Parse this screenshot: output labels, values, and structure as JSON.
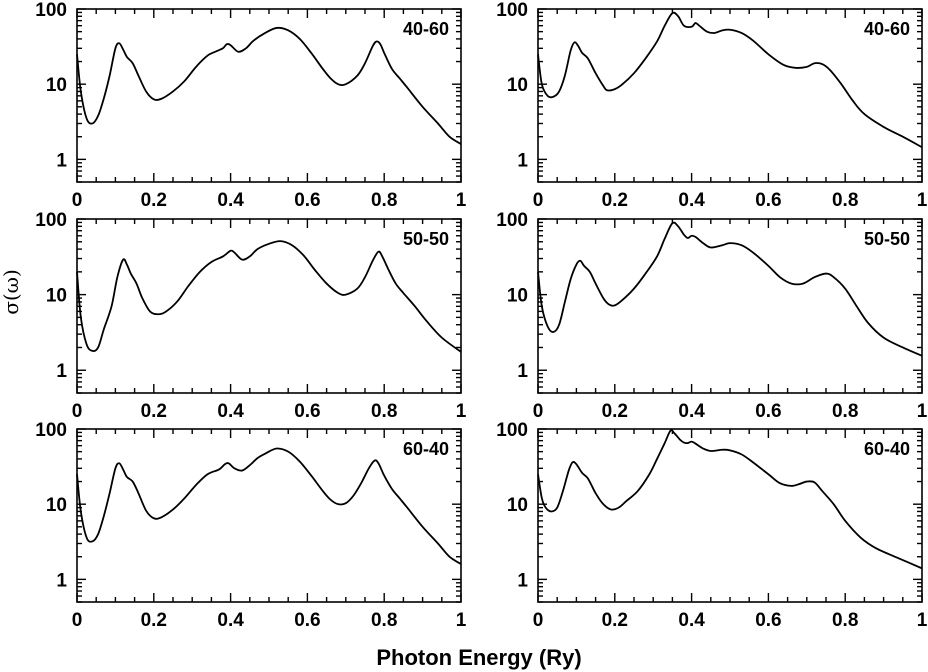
{
  "chart_data": {
    "type": "line",
    "xlabel": "Photon Energy (Ry)",
    "ylabel": "σ(ω)",
    "xlim": [
      0,
      1
    ],
    "ylim": [
      0.5,
      100
    ],
    "yscale": "log",
    "x_ticks": [
      "0",
      "0.2",
      "0.4",
      "0.6",
      "0.8",
      "1"
    ],
    "x_tick_values": [
      0,
      0.2,
      0.4,
      0.6,
      0.8,
      1
    ],
    "y_ticks": [
      "1",
      "10",
      "100"
    ],
    "y_tick_values": [
      1,
      10,
      100
    ],
    "panels": [
      {
        "name": "left-40-60",
        "label": "40-60",
        "points": [
          [
            0,
            25
          ],
          [
            0.01,
            8
          ],
          [
            0.025,
            3.5
          ],
          [
            0.04,
            3
          ],
          [
            0.055,
            3.8
          ],
          [
            0.07,
            6.5
          ],
          [
            0.085,
            13
          ],
          [
            0.1,
            30
          ],
          [
            0.11,
            35
          ],
          [
            0.12,
            29
          ],
          [
            0.13,
            23
          ],
          [
            0.145,
            19
          ],
          [
            0.16,
            13
          ],
          [
            0.18,
            8
          ],
          [
            0.2,
            6.3
          ],
          [
            0.22,
            6.4
          ],
          [
            0.25,
            8
          ],
          [
            0.28,
            11
          ],
          [
            0.31,
            17
          ],
          [
            0.34,
            24
          ],
          [
            0.36,
            27
          ],
          [
            0.38,
            30
          ],
          [
            0.39,
            34
          ],
          [
            0.4,
            33
          ],
          [
            0.42,
            27
          ],
          [
            0.44,
            30
          ],
          [
            0.46,
            38
          ],
          [
            0.49,
            48
          ],
          [
            0.52,
            56
          ],
          [
            0.55,
            52
          ],
          [
            0.58,
            40
          ],
          [
            0.61,
            26
          ],
          [
            0.64,
            16
          ],
          [
            0.66,
            12
          ],
          [
            0.68,
            10
          ],
          [
            0.7,
            10
          ],
          [
            0.73,
            13
          ],
          [
            0.75,
            19
          ],
          [
            0.77,
            32
          ],
          [
            0.78,
            37
          ],
          [
            0.79,
            34
          ],
          [
            0.8,
            26
          ],
          [
            0.82,
            16
          ],
          [
            0.84,
            12
          ],
          [
            0.86,
            9
          ],
          [
            0.9,
            5
          ],
          [
            0.94,
            3
          ],
          [
            0.97,
            2
          ],
          [
            1.0,
            1.6
          ]
        ]
      },
      {
        "name": "right-40-60",
        "label": "40-60",
        "points": [
          [
            0,
            25
          ],
          [
            0.01,
            10
          ],
          [
            0.025,
            7
          ],
          [
            0.04,
            6.8
          ],
          [
            0.055,
            8
          ],
          [
            0.07,
            13
          ],
          [
            0.085,
            28
          ],
          [
            0.095,
            36
          ],
          [
            0.105,
            32
          ],
          [
            0.115,
            26
          ],
          [
            0.13,
            22
          ],
          [
            0.15,
            14
          ],
          [
            0.17,
            9.5
          ],
          [
            0.18,
            8.3
          ],
          [
            0.2,
            8.6
          ],
          [
            0.22,
            10
          ],
          [
            0.25,
            14
          ],
          [
            0.28,
            22
          ],
          [
            0.31,
            37
          ],
          [
            0.33,
            60
          ],
          [
            0.35,
            88
          ],
          [
            0.365,
            80
          ],
          [
            0.38,
            60
          ],
          [
            0.4,
            58
          ],
          [
            0.41,
            65
          ],
          [
            0.42,
            60
          ],
          [
            0.44,
            50
          ],
          [
            0.46,
            48
          ],
          [
            0.48,
            52
          ],
          [
            0.5,
            53
          ],
          [
            0.53,
            48
          ],
          [
            0.56,
            38
          ],
          [
            0.6,
            25
          ],
          [
            0.64,
            18
          ],
          [
            0.67,
            16.5
          ],
          [
            0.7,
            17
          ],
          [
            0.72,
            19
          ],
          [
            0.74,
            18.5
          ],
          [
            0.76,
            15.5
          ],
          [
            0.79,
            10
          ],
          [
            0.82,
            6
          ],
          [
            0.85,
            4
          ],
          [
            0.9,
            2.7
          ],
          [
            0.95,
            2
          ],
          [
            1.0,
            1.45
          ]
        ]
      },
      {
        "name": "left-50-50",
        "label": "50-50",
        "points": [
          [
            0,
            20
          ],
          [
            0.01,
            5
          ],
          [
            0.025,
            2.2
          ],
          [
            0.04,
            1.8
          ],
          [
            0.055,
            2
          ],
          [
            0.07,
            3.5
          ],
          [
            0.09,
            7
          ],
          [
            0.105,
            17
          ],
          [
            0.12,
            29
          ],
          [
            0.13,
            25
          ],
          [
            0.14,
            19
          ],
          [
            0.155,
            14
          ],
          [
            0.17,
            9
          ],
          [
            0.19,
            6
          ],
          [
            0.21,
            5.5
          ],
          [
            0.23,
            5.9
          ],
          [
            0.26,
            8
          ],
          [
            0.29,
            13
          ],
          [
            0.32,
            20
          ],
          [
            0.35,
            27
          ],
          [
            0.38,
            32
          ],
          [
            0.4,
            38
          ],
          [
            0.41,
            36
          ],
          [
            0.43,
            29
          ],
          [
            0.45,
            32
          ],
          [
            0.47,
            40
          ],
          [
            0.5,
            47
          ],
          [
            0.53,
            51
          ],
          [
            0.56,
            45
          ],
          [
            0.59,
            33
          ],
          [
            0.62,
            21
          ],
          [
            0.65,
            14
          ],
          [
            0.68,
            10.5
          ],
          [
            0.7,
            10
          ],
          [
            0.73,
            12
          ],
          [
            0.75,
            17
          ],
          [
            0.77,
            28
          ],
          [
            0.785,
            37
          ],
          [
            0.795,
            32
          ],
          [
            0.81,
            22
          ],
          [
            0.83,
            14
          ],
          [
            0.85,
            10.5
          ],
          [
            0.88,
            7
          ],
          [
            0.91,
            4.5
          ],
          [
            0.95,
            2.7
          ],
          [
            1.0,
            1.75
          ]
        ]
      },
      {
        "name": "right-50-50",
        "label": "50-50",
        "points": [
          [
            0,
            20
          ],
          [
            0.01,
            7
          ],
          [
            0.025,
            3.8
          ],
          [
            0.04,
            3.2
          ],
          [
            0.055,
            4
          ],
          [
            0.07,
            8
          ],
          [
            0.085,
            16
          ],
          [
            0.1,
            25
          ],
          [
            0.11,
            28
          ],
          [
            0.12,
            24
          ],
          [
            0.135,
            20
          ],
          [
            0.15,
            14
          ],
          [
            0.17,
            9
          ],
          [
            0.185,
            7.4
          ],
          [
            0.2,
            7.2
          ],
          [
            0.22,
            8.5
          ],
          [
            0.25,
            12
          ],
          [
            0.28,
            19
          ],
          [
            0.31,
            32
          ],
          [
            0.33,
            55
          ],
          [
            0.35,
            88
          ],
          [
            0.365,
            80
          ],
          [
            0.38,
            62
          ],
          [
            0.39,
            56
          ],
          [
            0.4,
            60
          ],
          [
            0.41,
            58
          ],
          [
            0.43,
            48
          ],
          [
            0.45,
            42
          ],
          [
            0.48,
            45
          ],
          [
            0.5,
            48
          ],
          [
            0.53,
            45
          ],
          [
            0.56,
            36
          ],
          [
            0.6,
            24
          ],
          [
            0.63,
            17
          ],
          [
            0.66,
            14
          ],
          [
            0.69,
            14
          ],
          [
            0.72,
            17
          ],
          [
            0.75,
            19
          ],
          [
            0.77,
            17
          ],
          [
            0.8,
            12
          ],
          [
            0.83,
            7
          ],
          [
            0.86,
            4.2
          ],
          [
            0.9,
            2.7
          ],
          [
            0.95,
            2
          ],
          [
            1.0,
            1.55
          ]
        ]
      },
      {
        "name": "left-60-40",
        "label": "60-40",
        "points": [
          [
            0,
            25
          ],
          [
            0.01,
            8
          ],
          [
            0.025,
            3.6
          ],
          [
            0.04,
            3.2
          ],
          [
            0.055,
            4
          ],
          [
            0.07,
            7
          ],
          [
            0.085,
            14
          ],
          [
            0.1,
            30
          ],
          [
            0.11,
            35
          ],
          [
            0.12,
            29
          ],
          [
            0.13,
            23
          ],
          [
            0.145,
            20
          ],
          [
            0.16,
            14
          ],
          [
            0.18,
            8.2
          ],
          [
            0.2,
            6.5
          ],
          [
            0.22,
            6.7
          ],
          [
            0.25,
            8.5
          ],
          [
            0.28,
            12
          ],
          [
            0.31,
            18
          ],
          [
            0.34,
            25
          ],
          [
            0.37,
            29
          ],
          [
            0.385,
            34
          ],
          [
            0.395,
            35
          ],
          [
            0.41,
            30
          ],
          [
            0.43,
            28
          ],
          [
            0.45,
            33
          ],
          [
            0.47,
            41
          ],
          [
            0.49,
            47
          ],
          [
            0.52,
            55
          ],
          [
            0.55,
            50
          ],
          [
            0.58,
            37
          ],
          [
            0.61,
            24
          ],
          [
            0.64,
            15
          ],
          [
            0.66,
            11.5
          ],
          [
            0.68,
            10
          ],
          [
            0.7,
            10.3
          ],
          [
            0.72,
            13
          ],
          [
            0.74,
            19
          ],
          [
            0.76,
            30
          ],
          [
            0.775,
            38
          ],
          [
            0.785,
            35
          ],
          [
            0.8,
            24
          ],
          [
            0.82,
            16
          ],
          [
            0.84,
            12
          ],
          [
            0.86,
            9
          ],
          [
            0.9,
            5
          ],
          [
            0.94,
            3
          ],
          [
            0.97,
            2
          ],
          [
            1.0,
            1.6
          ]
        ]
      },
      {
        "name": "right-60-40",
        "label": "60-40",
        "points": [
          [
            0,
            25
          ],
          [
            0.01,
            12
          ],
          [
            0.02,
            9
          ],
          [
            0.035,
            8
          ],
          [
            0.05,
            9
          ],
          [
            0.065,
            15
          ],
          [
            0.08,
            28
          ],
          [
            0.09,
            36
          ],
          [
            0.1,
            34
          ],
          [
            0.115,
            26
          ],
          [
            0.13,
            22
          ],
          [
            0.15,
            14
          ],
          [
            0.17,
            10
          ],
          [
            0.19,
            8.5
          ],
          [
            0.21,
            9
          ],
          [
            0.23,
            11
          ],
          [
            0.26,
            15
          ],
          [
            0.29,
            25
          ],
          [
            0.31,
            40
          ],
          [
            0.33,
            65
          ],
          [
            0.345,
            95
          ],
          [
            0.355,
            88
          ],
          [
            0.37,
            72
          ],
          [
            0.38,
            66
          ],
          [
            0.39,
            65
          ],
          [
            0.4,
            68
          ],
          [
            0.41,
            64
          ],
          [
            0.43,
            55
          ],
          [
            0.45,
            51
          ],
          [
            0.48,
            53
          ],
          [
            0.5,
            52
          ],
          [
            0.53,
            46
          ],
          [
            0.56,
            36
          ],
          [
            0.6,
            25
          ],
          [
            0.63,
            19
          ],
          [
            0.66,
            17.5
          ],
          [
            0.68,
            18.5
          ],
          [
            0.7,
            20
          ],
          [
            0.72,
            19.5
          ],
          [
            0.74,
            15
          ],
          [
            0.77,
            10
          ],
          [
            0.8,
            6
          ],
          [
            0.84,
            3.6
          ],
          [
            0.88,
            2.6
          ],
          [
            0.94,
            1.9
          ],
          [
            1.0,
            1.4
          ]
        ]
      }
    ]
  }
}
